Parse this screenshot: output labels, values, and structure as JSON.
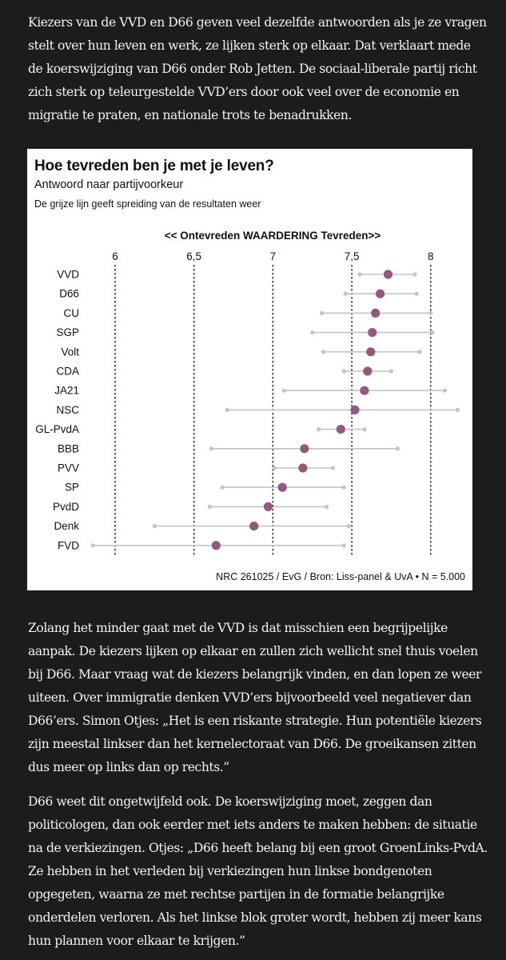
{
  "article": {
    "paragraphs": [
      "Kiezers van de VVD en D66 geven veel dezelfde antwoorden als je ze vragen stelt over hun leven en werk, ze lijken sterk op elkaar. Dat verklaart mede de koerswijziging van D66 onder Rob Jetten. De sociaal-liberale partij richt zich sterk op teleurgestelde VVD’ers door ook veel over de economie en migratie te praten, en nationale trots te benadrukken.",
      "Zolang het minder gaat met de VVD is dat misschien een begrijpelijke aanpak. De kiezers lijken op elkaar en zullen zich wellicht snel thuis voelen bij D66. Maar vraag wat de kiezers belangrijk vinden, en dan lopen ze weer uiteen. Over immigratie denken VVD’ers bijvoorbeeld veel negatiever dan D66’ers. Simon Otjes: „Het is een riskante strategie. Hun potentiële kiezers zijn meestal linkser dan het kernelectoraat van D66. De groeikansen zitten dus meer op links dan op rechts.”",
      "D66 weet dit ongetwijfeld ook. De koerswijziging moet, zeggen dan politicologen, dan ook eerder met iets anders te maken hebben: de situatie na de verkiezingen. Otjes: „D66 heeft belang bij een groot GroenLinks-PvdA. Ze hebben in het verleden bij verkiezingen hun linkse bondgenoten opgegeten, waarna ze met rechtse partijen in de formatie belangrijke onderdelen verloren. Als het linkse blok groter wordt, hebben zij meer kans hun plannen voor elkaar te krijgen.”"
    ]
  },
  "colors": {
    "page_background": "#1c1c1c",
    "chart_background": "#ffffff",
    "dot": "#94587f",
    "range_line": "#c4c4c4",
    "grid": "#111111"
  },
  "chart_data": {
    "type": "dot-range",
    "title": "Hoe tevreden ben je met je leven?",
    "subtitle": "Antwoord naar partijvoorkeur",
    "note": "De grijze lijn geeft spreiding van de resultaten weer",
    "xlabel": "<< Ontevreden WAARDERING Tevreden>>",
    "xticks": [
      "6",
      "6,5",
      "7",
      "7,5",
      "8"
    ],
    "xlim": [
      5.85,
      8.2
    ],
    "grid": "dotted vertical",
    "source": "NRC 261025 / EvG / Bron: Liss-panel & UvA • N = 5.000",
    "categories": [
      "VVD",
      "D66",
      "CU",
      "SGP",
      "Volt",
      "CDA",
      "JA21",
      "NSC",
      "GL-PvdA",
      "BBB",
      "PVV",
      "SP",
      "PvdD",
      "Denk",
      "FVD"
    ],
    "values": [
      7.73,
      7.68,
      7.65,
      7.63,
      7.62,
      7.6,
      7.58,
      7.52,
      7.43,
      7.2,
      7.19,
      7.06,
      6.97,
      6.88,
      6.64
    ],
    "low": [
      7.55,
      7.46,
      7.31,
      7.25,
      7.32,
      7.45,
      7.07,
      6.71,
      7.29,
      6.61,
      7.01,
      6.68,
      6.6,
      6.25,
      5.86
    ],
    "high": [
      7.9,
      7.91,
      8.0,
      8.01,
      7.93,
      7.75,
      8.09,
      8.17,
      7.58,
      7.79,
      7.38,
      7.45,
      7.34,
      7.48,
      7.45
    ]
  }
}
